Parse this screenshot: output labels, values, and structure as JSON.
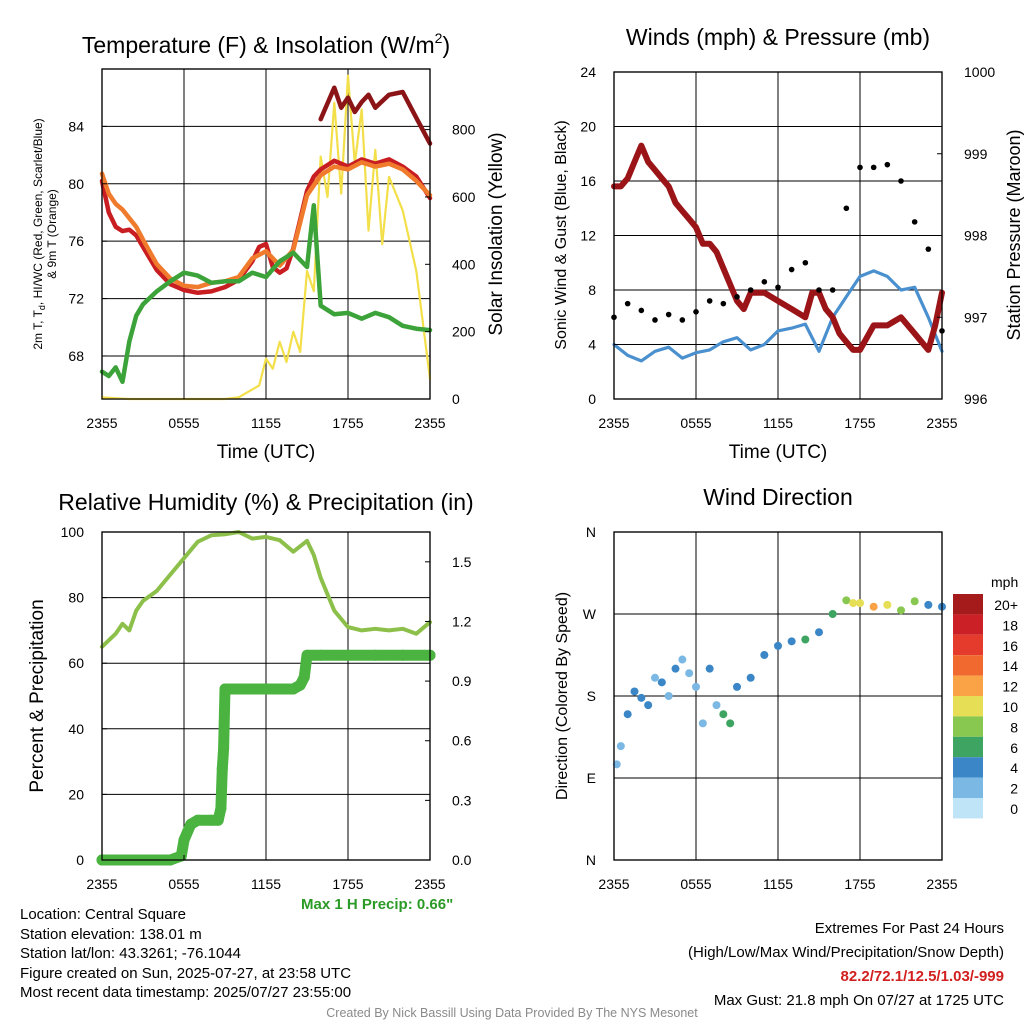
{
  "titles": {
    "temperature": "Temperature (F) & Insolation (W/m",
    "temperature_sup": "2",
    "temperature_end": ")",
    "winds": "Winds (mph) & Pressure (mb)",
    "humidity": "Relative Humidity (%) & Precipitation (in)",
    "direction": "Wind Direction"
  },
  "axis_labels": {
    "temp_left_line1": "2m T, T",
    "temp_left_sub": "d",
    "temp_left_rest": ", HI/WC (Red, Green, Scarlet/Blue)",
    "temp_left_line2": "& 9m T (Orange)",
    "temp_right": "Solar Insolation (Yellow)",
    "winds_left": "Sonic Wind & Gust (Blue, Black)",
    "winds_right": "Station Pressure (Maroon)",
    "humidity_left": "Percent & Precipitation",
    "direction_left": "Direction (Colored By Speed)",
    "time": "Time (UTC)"
  },
  "x_ticks": [
    "2355",
    "0555",
    "1155",
    "1755",
    "2355"
  ],
  "temp_y_ticks": [
    "68",
    "72",
    "76",
    "80",
    "84"
  ],
  "insol_y_ticks": [
    "0",
    "200",
    "400",
    "600",
    "800"
  ],
  "wind_y_ticks": [
    "0",
    "4",
    "8",
    "12",
    "16",
    "20",
    "24"
  ],
  "pressure_y_ticks": [
    "996",
    "997",
    "998",
    "999",
    "1000"
  ],
  "rh_y_ticks": [
    "0",
    "20",
    "40",
    "60",
    "80",
    "100"
  ],
  "precip_y_ticks": [
    "0.0",
    "0.3",
    "0.6",
    "0.9",
    "1.2",
    "1.5"
  ],
  "dir_y_ticks": [
    "N",
    "E",
    "S",
    "W",
    "N"
  ],
  "legend": {
    "title": "mph",
    "labels": [
      "20+",
      "18",
      "16",
      "14",
      "12",
      "10",
      "8",
      "6",
      "4",
      "2",
      "0"
    ],
    "colors": [
      "#a51b1c",
      "#cb2026",
      "#e43b2c",
      "#f1692e",
      "#f9a346",
      "#e6de55",
      "#88c850",
      "#3ea461",
      "#3a86c6",
      "#7bb8e3",
      "#bfe4f7"
    ]
  },
  "max_precip": "Max 1 H Precip: 0.66\"",
  "info_left": {
    "location": "Location: Central Square",
    "elevation": "Station elevation: 138.01 m",
    "latlon": "Station lat/lon: 43.3261; -76.1044",
    "created": "Figure created on Sun, 2025-07-27, at 23:58 UTC",
    "recent": "Most recent data timestamp: 2025/07/27 23:55:00"
  },
  "info_right": {
    "line1": "Extremes For Past 24 Hours",
    "line2": "(High/Low/Max Wind/Precipitation/Snow Depth)",
    "values": "82.2/72.1/12.5/1.03/-999",
    "gust": "Max Gust: 21.8 mph On 07/27 at 1725 UTC"
  },
  "credit": "Created By Nick Bassill Using Data Provided By The NYS Mesonet",
  "chart_data": [
    {
      "type": "line",
      "title": "Temperature (F) & Insolation (W/m2)",
      "xlabel": "Time (UTC)",
      "ylabel": "2m T, Td, HI/WC (Red, Green, Scarlet/Blue) & 9m T (Orange)",
      "y2label": "Solar Insolation (Yellow)",
      "xlim": [
        0,
        24
      ],
      "ylim": [
        65,
        88
      ],
      "y2lim": [
        0,
        980
      ],
      "x_tick_labels": [
        "2355",
        "0555",
        "1155",
        "1755",
        "2355"
      ],
      "series": [
        {
          "name": "2m T",
          "color": "#c81e22",
          "axis": "left",
          "x": [
            0,
            0.5,
            1,
            1.5,
            2,
            2.5,
            3,
            3.5,
            4,
            5,
            6,
            7,
            8,
            9,
            10,
            11,
            11.5,
            12,
            12.5,
            13,
            13.5,
            14,
            14.5,
            15,
            15.5,
            16,
            17,
            18,
            19,
            20,
            21,
            22,
            23,
            24
          ],
          "y": [
            80.2,
            78,
            77,
            76.7,
            76.8,
            76.4,
            75.6,
            74.8,
            74,
            73,
            72.6,
            72.4,
            72.5,
            72.8,
            73.3,
            74.6,
            75.6,
            75.8,
            74.2,
            73.8,
            74.1,
            75.5,
            77.5,
            79.5,
            80.5,
            81,
            81.6,
            81.2,
            81.7,
            81.4,
            81.7,
            81.2,
            80.5,
            79
          ]
        },
        {
          "name": "9m T",
          "color": "#f07b2d",
          "axis": "left",
          "x": [
            0,
            0.5,
            1,
            1.5,
            2,
            2.5,
            3,
            4,
            5,
            6,
            7,
            8,
            9,
            10,
            11,
            12,
            13,
            14,
            15,
            16,
            17,
            18,
            19,
            20,
            21,
            22,
            23,
            24
          ],
          "y": [
            80.7,
            79.3,
            78.6,
            78.2,
            77.6,
            77,
            76.1,
            74.4,
            73.4,
            72.9,
            72.8,
            73.1,
            73.2,
            73.5,
            74.8,
            75.3,
            74.3,
            75.4,
            79.2,
            80.6,
            81.2,
            81,
            81.5,
            81.2,
            81.4,
            81,
            80.2,
            79.2
          ]
        },
        {
          "name": "Dew Point",
          "color": "#3ca33a",
          "axis": "left",
          "x": [
            0,
            0.5,
            1,
            1.5,
            2,
            2.5,
            3,
            4,
            5,
            6,
            7,
            8,
            9,
            10,
            11,
            12,
            13,
            14,
            15,
            15.5,
            16,
            17,
            18,
            19,
            20,
            21,
            22,
            23,
            24
          ],
          "y": [
            66.9,
            66.6,
            67.2,
            66.2,
            69,
            70.8,
            71.6,
            72.5,
            73.2,
            73.8,
            73.6,
            73.1,
            73.2,
            73.2,
            73.8,
            73.5,
            74.6,
            75.2,
            74.2,
            78.5,
            71.5,
            70.9,
            71,
            70.6,
            71,
            70.7,
            70.1,
            69.9,
            69.8
          ]
        },
        {
          "name": "Heat Index",
          "color": "#8b1417",
          "axis": "left",
          "x": [
            16,
            16.5,
            17,
            17.5,
            18,
            18.5,
            19,
            19.5,
            20,
            21,
            22,
            23,
            24
          ],
          "y": [
            84.5,
            85.6,
            86.7,
            85.3,
            86,
            85,
            85.7,
            86.2,
            85.3,
            86.2,
            86.4,
            84.6,
            82.8
          ]
        },
        {
          "name": "Solar Insolation",
          "color": "#f3df4a",
          "axis": "right",
          "x": [
            0,
            2,
            4,
            6,
            8,
            9,
            10,
            11.5,
            12,
            12.5,
            13,
            13.5,
            14,
            14.5,
            15,
            15.5,
            16,
            16.5,
            17,
            17.5,
            18,
            18.5,
            19,
            19.5,
            20,
            20.5,
            21,
            22,
            23,
            24
          ],
          "y": [
            5,
            0,
            0,
            0,
            0,
            0,
            5,
            40,
            120,
            90,
            170,
            110,
            200,
            140,
            380,
            320,
            720,
            600,
            880,
            610,
            960,
            700,
            860,
            500,
            740,
            460,
            660,
            560,
            380,
            60
          ]
        }
      ]
    },
    {
      "type": "line",
      "title": "Winds (mph) & Pressure (mb)",
      "xlabel": "Time (UTC)",
      "ylabel": "Sonic Wind & Gust (Blue, Black)",
      "y2label": "Station Pressure (Maroon)",
      "xlim": [
        0,
        24
      ],
      "ylim": [
        0,
        24
      ],
      "y2lim": [
        996,
        1000
      ],
      "x_tick_labels": [
        "2355",
        "0555",
        "1155",
        "1755",
        "2355"
      ],
      "series": [
        {
          "name": "Sonic Wind",
          "color": "#4a90cf",
          "axis": "left",
          "x": [
            0,
            1,
            2,
            3,
            4,
            5,
            6,
            7,
            8,
            9,
            10,
            11,
            12,
            13,
            14,
            15,
            16,
            17,
            18,
            19,
            20,
            21,
            22,
            23,
            24
          ],
          "y": [
            4,
            3.2,
            2.8,
            3.5,
            3.8,
            3,
            3.4,
            3.6,
            4.2,
            4.5,
            3.6,
            4,
            5,
            5.2,
            5.5,
            3.5,
            6,
            7.5,
            9,
            9.4,
            9,
            8,
            8.2,
            6,
            3.5
          ]
        },
        {
          "name": "Gust",
          "color": "#000000",
          "axis": "left",
          "x": [
            0,
            1,
            2,
            3,
            4,
            5,
            6,
            7,
            8,
            9,
            10,
            11,
            12,
            13,
            14,
            15,
            16,
            17,
            18,
            19,
            20,
            21,
            22,
            23,
            24
          ],
          "y": [
            6,
            7,
            6.5,
            5.8,
            6.2,
            5.8,
            6.4,
            7.2,
            7,
            7.5,
            8,
            8.6,
            8.2,
            9.5,
            10,
            8,
            8,
            14,
            17,
            17,
            17.2,
            16,
            13,
            11,
            5
          ]
        },
        {
          "name": "Station Pressure",
          "color": "#9b1518",
          "axis": "right",
          "x": [
            0,
            0.5,
            1,
            1.5,
            2,
            2.5,
            3,
            3.5,
            4,
            4.5,
            5,
            5.5,
            6,
            6.5,
            7,
            7.5,
            8,
            8.5,
            9,
            9.5,
            10,
            11,
            12,
            13,
            14,
            14.5,
            15,
            15.5,
            16,
            16.5,
            17,
            17.5,
            18,
            19,
            20,
            21,
            22,
            23,
            23.5,
            24
          ],
          "y": [
            998.6,
            998.6,
            998.7,
            998.9,
            999.1,
            998.9,
            998.8,
            998.7,
            998.6,
            998.4,
            998.3,
            998.2,
            998.1,
            997.9,
            997.9,
            997.8,
            997.6,
            997.4,
            997.2,
            997.1,
            997.3,
            997.3,
            997.2,
            997.1,
            997,
            997.3,
            997.3,
            997.1,
            997,
            996.8,
            996.7,
            996.6,
            996.6,
            996.9,
            996.9,
            997,
            996.8,
            996.6,
            996.9,
            997.3
          ]
        }
      ]
    },
    {
      "type": "line",
      "title": "Relative Humidity (%) & Precipitation (in)",
      "xlabel": "",
      "ylabel": "Percent & Precipitation",
      "xlim": [
        0,
        24
      ],
      "ylim": [
        0,
        100
      ],
      "y2lim": [
        0,
        1.65
      ],
      "x_tick_labels": [
        "2355",
        "0555",
        "1155",
        "1755",
        "2355"
      ],
      "series": [
        {
          "name": "Relative Humidity",
          "color": "#8cc04a",
          "axis": "left",
          "x": [
            0,
            1,
            1.5,
            2,
            2.5,
            3,
            4,
            5,
            6,
            7,
            8,
            9,
            10,
            11,
            12,
            13,
            14,
            15,
            15.5,
            16,
            17,
            18,
            19,
            20,
            21,
            22,
            23,
            24
          ],
          "y": [
            65,
            69,
            72,
            70,
            76,
            79,
            82,
            87,
            92,
            97,
            99,
            99.3,
            100,
            98,
            98.5,
            97.5,
            94,
            97.3,
            93,
            86,
            76,
            71,
            70,
            70.5,
            70,
            70.5,
            69,
            72.5
          ]
        },
        {
          "name": "Precipitation",
          "color": "#4bb340",
          "axis": "right",
          "x": [
            0,
            5,
            5.8,
            6,
            6.5,
            7,
            8,
            8.5,
            8.7,
            8.8,
            8.9,
            9,
            10,
            11,
            12,
            13,
            14,
            14.5,
            14.8,
            15,
            16,
            18,
            20,
            22,
            24
          ],
          "y": [
            0,
            0,
            0.02,
            0.1,
            0.18,
            0.2,
            0.2,
            0.2,
            0.26,
            0.46,
            0.56,
            0.86,
            0.86,
            0.86,
            0.86,
            0.86,
            0.86,
            0.88,
            0.92,
            1.03,
            1.03,
            1.03,
            1.03,
            1.03,
            1.03
          ]
        }
      ]
    },
    {
      "type": "scatter",
      "title": "Wind Direction",
      "xlabel": "",
      "ylabel": "Direction (Colored By Speed)",
      "xlim": [
        0,
        24
      ],
      "ylim": [
        0,
        360
      ],
      "x_tick_labels": [
        "2355",
        "0555",
        "1155",
        "1755",
        "2355"
      ],
      "y_tick_labels": [
        "N",
        "E",
        "S",
        "W",
        "N"
      ],
      "color_by": "speed (mph)",
      "series": [
        {
          "name": "Wind Direction",
          "x": [
            0.2,
            0.5,
            1,
            1.5,
            2,
            2.5,
            3,
            3.5,
            4,
            4.5,
            5,
            5.5,
            6,
            6.5,
            7,
            7.5,
            8,
            8.5,
            9,
            10,
            11,
            12,
            13,
            14,
            15,
            16,
            17,
            17.5,
            18,
            19,
            20,
            21,
            22,
            23,
            24
          ],
          "y": [
            105,
            125,
            160,
            185,
            178,
            170,
            200,
            195,
            180,
            210,
            220,
            205,
            190,
            150,
            210,
            170,
            160,
            150,
            190,
            200,
            225,
            235,
            240,
            242,
            250,
            270,
            285,
            282,
            282,
            278,
            280,
            274,
            284,
            280,
            278
          ],
          "speed": [
            1,
            2,
            3,
            4,
            4,
            4,
            2,
            3,
            1,
            3,
            2,
            2,
            2,
            1,
            4,
            2,
            5,
            6,
            4,
            4,
            4,
            4,
            4,
            5,
            4,
            5,
            8,
            9,
            10,
            11,
            10,
            8,
            7,
            4,
            4
          ]
        }
      ]
    }
  ]
}
